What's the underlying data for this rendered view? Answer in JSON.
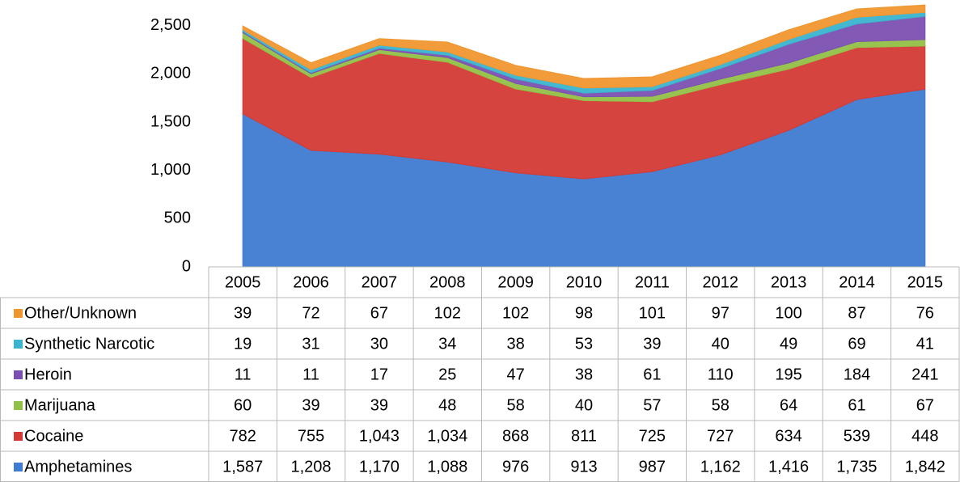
{
  "chart_data": {
    "type": "stacked_area",
    "categories": [
      "2005",
      "2006",
      "2007",
      "2008",
      "2009",
      "2010",
      "2011",
      "2012",
      "2013",
      "2014",
      "2015"
    ],
    "ylim": [
      0,
      2750
    ],
    "yticks": [
      0,
      500,
      {
        "value": 1000,
        "label": "1,000"
      },
      {
        "value": 1500,
        "label": "1,500"
      },
      {
        "value": 2000,
        "label": "2,000"
      },
      {
        "value": 2500,
        "label": "2,500"
      }
    ],
    "series": [
      {
        "name": "Amphetamines",
        "color": "#3f7bd1",
        "values": [
          1587,
          1208,
          1170,
          1088,
          976,
          913,
          987,
          1162,
          1416,
          1735,
          1842
        ],
        "value_labels": [
          "1,587",
          "1,208",
          "1,170",
          "1,088",
          "976",
          "913",
          "987",
          "1,162",
          "1,416",
          "1,735",
          "1,842"
        ]
      },
      {
        "name": "Cocaine",
        "color": "#d43a35",
        "values": [
          782,
          755,
          1043,
          1034,
          868,
          811,
          725,
          727,
          634,
          539,
          448
        ],
        "value_labels": [
          "782",
          "755",
          "1,043",
          "1,034",
          "868",
          "811",
          "725",
          "727",
          "634",
          "539",
          "448"
        ]
      },
      {
        "name": "Marijuana",
        "color": "#93c047",
        "values": [
          60,
          39,
          39,
          48,
          58,
          40,
          57,
          58,
          64,
          61,
          67
        ]
      },
      {
        "name": "Heroin",
        "color": "#7c50b2",
        "values": [
          11,
          11,
          17,
          25,
          47,
          38,
          61,
          110,
          195,
          184,
          241
        ]
      },
      {
        "name": "Synthetic Narcotic",
        "color": "#3bb4cf",
        "values": [
          19,
          31,
          30,
          34,
          38,
          53,
          39,
          40,
          49,
          69,
          41
        ]
      },
      {
        "name": "Other/Unknown",
        "color": "#f0962f",
        "values": [
          39,
          72,
          67,
          102,
          102,
          98,
          101,
          97,
          100,
          87,
          76
        ]
      }
    ]
  }
}
